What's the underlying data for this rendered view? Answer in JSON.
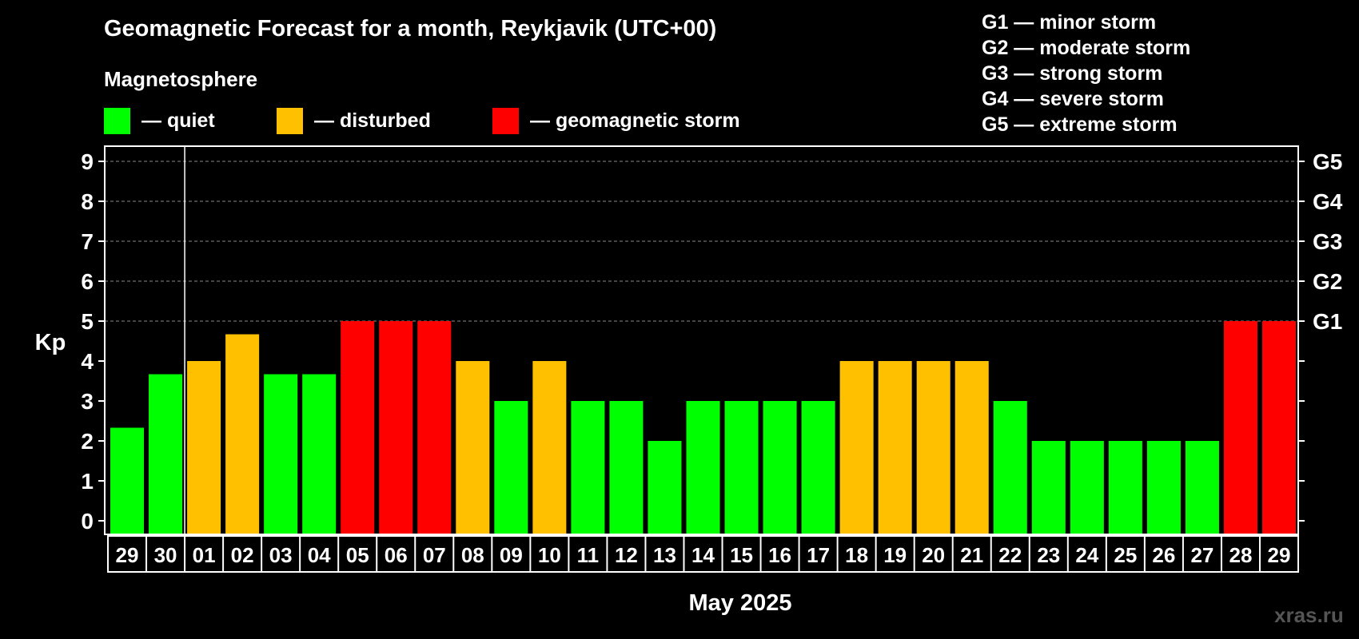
{
  "chart_data": {
    "type": "bar",
    "title": "Geomagnetic Forecast for a month, Reykjavik (UTC+00)",
    "ylabel": "Kp",
    "xlabel": "May 2025",
    "ylim": [
      0,
      9
    ],
    "y_ticks": [
      "0",
      "1",
      "2",
      "3",
      "4",
      "5",
      "6",
      "7",
      "8",
      "9"
    ],
    "right_ticks": [
      {
        "value": 5,
        "label": "G1"
      },
      {
        "value": 6,
        "label": "G2"
      },
      {
        "value": 7,
        "label": "G3"
      },
      {
        "value": 8,
        "label": "G4"
      },
      {
        "value": 9,
        "label": "G5"
      }
    ],
    "categories": [
      "29",
      "30",
      "01",
      "02",
      "03",
      "04",
      "05",
      "06",
      "07",
      "08",
      "09",
      "10",
      "11",
      "12",
      "13",
      "14",
      "15",
      "16",
      "17",
      "18",
      "19",
      "20",
      "21",
      "22",
      "23",
      "24",
      "25",
      "26",
      "27",
      "28",
      "29"
    ],
    "values": [
      2.33,
      3.67,
      4,
      4.67,
      3.67,
      3.67,
      5,
      5,
      5,
      4,
      3,
      4,
      3,
      3,
      2,
      3,
      3,
      3,
      3,
      4,
      4,
      4,
      4,
      3,
      2,
      2,
      2,
      2,
      2,
      5,
      5
    ],
    "levels": [
      "quiet",
      "quiet",
      "disturbed",
      "disturbed",
      "quiet",
      "quiet",
      "storm",
      "storm",
      "storm",
      "disturbed",
      "quiet",
      "disturbed",
      "quiet",
      "quiet",
      "quiet",
      "quiet",
      "quiet",
      "quiet",
      "quiet",
      "disturbed",
      "disturbed",
      "disturbed",
      "disturbed",
      "quiet",
      "quiet",
      "quiet",
      "quiet",
      "quiet",
      "quiet",
      "storm",
      "storm"
    ],
    "month_boundary_after_index": 1,
    "grid": true,
    "colors": {
      "quiet": "#00ff00",
      "disturbed": "#ffc000",
      "storm": "#ff0000",
      "background": "#000000",
      "axis": "#ffffff"
    }
  },
  "legend": {
    "title": "Magnetosphere",
    "items": [
      {
        "label": "— quiet",
        "color": "#00ff00"
      },
      {
        "label": "— disturbed",
        "color": "#ffc000"
      },
      {
        "label": "— geomagnetic storm",
        "color": "#ff0000"
      }
    ]
  },
  "g_legend": [
    "G1 — minor storm",
    "G2 — moderate storm",
    "G3 — strong storm",
    "G4 — severe storm",
    "G5 — extreme storm"
  ],
  "watermark": "xras.ru"
}
